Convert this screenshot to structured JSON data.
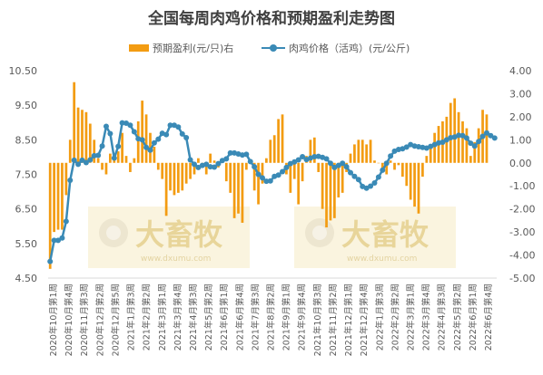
{
  "chart_data": {
    "type": "bar+line",
    "title": "全国每周肉鸡价格和预期盈利走势图",
    "colors": {
      "bar": "#F39C12",
      "line": "#3A8AB6",
      "watermark_text": "#E8D59A",
      "watermark_bg": "#FAF3DC"
    },
    "legend": {
      "position": "top"
    },
    "watermark": {
      "brand": "大畜牧",
      "url": "www.dxumu.com"
    },
    "left_axis": {
      "range": [
        4.5,
        10.5
      ],
      "ticks": [
        "4.50",
        "5.50",
        "6.50",
        "7.50",
        "8.50",
        "9.50",
        "10.50"
      ]
    },
    "right_axis": {
      "range": [
        -5,
        4
      ],
      "ticks": [
        "-5.00",
        "-4.00",
        "-3.00",
        "-2.00",
        "-1.00",
        "0.00",
        "1.00",
        "2.00",
        "3.00",
        "4.00"
      ]
    },
    "x_tick_labels": [
      "2020年10月第1周",
      "2020年10月第4周",
      "2020年11月第3周",
      "2020年12月第2周",
      "2020年12月第5周",
      "2021年1月第3周",
      "2021年2月第2周",
      "2021年3月第1周",
      "2021年3月第4周",
      "2021年4月第3周",
      "2021年5月第2周",
      "2021年6月第1周",
      "2021年6月第4周",
      "2021年7月第3周",
      "2021年8月第2周",
      "2021年9月第1周",
      "2021年9月第4周",
      "2021年10月第3周",
      "2021年11月第2周",
      "2021年12月第1周",
      "2021年12月第4周",
      "2022年1月第3周",
      "2022年2月第2周",
      "2022年3月第1周",
      "2022年3月第4周",
      "2022年4月第3周",
      "2022年5月第2周",
      "2022年6月第1周",
      "2022年6月第4周"
    ],
    "series": [
      {
        "name": "预期盈利(元/只)右",
        "type": "bar",
        "axis": "right",
        "values": [
          -4.6,
          -3.0,
          -2.9,
          -2.9,
          -1.4,
          1.0,
          3.5,
          2.4,
          2.3,
          2.2,
          1.7,
          1.0,
          0.2,
          -0.3,
          -0.5,
          0.4,
          0.2,
          0.5,
          1.3,
          0.3,
          -0.4,
          0.2,
          1.8,
          2.7,
          2.1,
          1.3,
          0.7,
          -0.3,
          -0.7,
          -2.3,
          -1.2,
          -1.4,
          -1.3,
          -1.2,
          -0.9,
          -0.7,
          -0.5,
          0.2,
          -0.2,
          -0.5,
          0.4,
          0.1,
          -0.2,
          0.1,
          -0.8,
          -1.3,
          -2.4,
          -2.2,
          -2.6,
          -0.3,
          0.1,
          -1.2,
          -1.8,
          -0.9,
          0.2,
          1.0,
          1.2,
          1.9,
          2.1,
          -0.5,
          -1.3,
          -0.7,
          -1.8,
          -0.8,
          0.3,
          1.0,
          1.1,
          -0.4,
          -2.0,
          -2.8,
          -2.5,
          -2.4,
          -1.5,
          -1.3,
          -0.4,
          0.4,
          0.8,
          1.0,
          1.0,
          0.8,
          1.0,
          0.1,
          0.0,
          -0.4,
          -0.5,
          0.1,
          -0.3,
          -0.1,
          -0.6,
          -1.0,
          -1.6,
          -1.9,
          -2.2,
          -0.6,
          0.3,
          0.7,
          1.3,
          1.6,
          1.8,
          2.0,
          2.6,
          2.8,
          2.2,
          1.8,
          1.5,
          0.3,
          0.9,
          1.5,
          2.3,
          2.1
        ],
        "bar_width_weeks": [
          1.55,
          1.55,
          1.55,
          1.55,
          1.55,
          1.55,
          1.55,
          1.55,
          1.55,
          1.55,
          1.55,
          1.55,
          1.55,
          1.55,
          1.55,
          1.55,
          1.55,
          1.55,
          1.55,
          1.55,
          1.55,
          1.55,
          1.55,
          1.55,
          1.55,
          1.55,
          1.55,
          1.55,
          1.55,
          1.55,
          1.55,
          1.55,
          1.55,
          1.55,
          1.55,
          1.55,
          1.55,
          1.55,
          1.55,
          1.55,
          1.55,
          1.55,
          1.55,
          1.55,
          1.55,
          1.55,
          1.55,
          1.55,
          1.55,
          1.55,
          1.55,
          1.55,
          1.55,
          1.55,
          1.55,
          1.55,
          1.55,
          1.55,
          1.55,
          1.55,
          1.55,
          1.55,
          1.55,
          1.55,
          1.55,
          1.55,
          1.55,
          1.55,
          1.55,
          1.55,
          1.55,
          1.55,
          1.55,
          1.55,
          1.55,
          1.55,
          1.55,
          1.55,
          1.55,
          1.55,
          1.55,
          1.55,
          1.55,
          1.55,
          1.55,
          1.55,
          1.55,
          1.55,
          1.55,
          1.55,
          1.55,
          1.55,
          1.55,
          1.55,
          1.55,
          1.55,
          1.55,
          1.55,
          1.55,
          1.55,
          1.55,
          1.55,
          1.55,
          1.55,
          1.55,
          1.55,
          1.55,
          1.55,
          1.55,
          1.55
        ]
      },
      {
        "name": "肉鸡价格（活鸡）(元/公斤)",
        "type": "line",
        "axis": "left",
        "values": [
          4.98,
          5.59,
          5.59,
          5.66,
          6.14,
          7.33,
          7.91,
          7.79,
          7.91,
          7.84,
          7.92,
          8.04,
          8.05,
          8.32,
          8.89,
          8.68,
          7.97,
          8.31,
          8.99,
          8.98,
          8.92,
          8.73,
          8.53,
          8.5,
          8.28,
          8.2,
          8.41,
          8.52,
          8.69,
          8.65,
          8.92,
          8.92,
          8.87,
          8.67,
          8.56,
          7.92,
          7.79,
          7.7,
          7.76,
          7.79,
          7.72,
          7.71,
          7.81,
          7.9,
          7.95,
          8.12,
          8.12,
          8.09,
          8.06,
          8.08,
          7.87,
          7.72,
          7.5,
          7.4,
          7.3,
          7.31,
          7.44,
          7.48,
          7.58,
          7.7,
          7.81,
          7.86,
          7.92,
          8.01,
          7.93,
          7.97,
          8.01,
          8.02,
          7.99,
          7.95,
          7.82,
          7.7,
          7.76,
          7.82,
          7.72,
          7.55,
          7.44,
          7.35,
          7.15,
          7.1,
          7.16,
          7.25,
          7.42,
          7.62,
          7.82,
          8.03,
          8.17,
          8.22,
          8.24,
          8.29,
          8.36,
          8.32,
          8.3,
          8.28,
          8.26,
          8.31,
          8.36,
          8.41,
          8.43,
          8.5,
          8.56,
          8.58,
          8.63,
          8.62,
          8.55,
          8.4,
          8.32,
          8.45,
          8.6,
          8.7,
          8.62,
          8.55
        ]
      }
    ],
    "xlabel": "",
    "ylabel_left": "",
    "ylabel_right": ""
  }
}
